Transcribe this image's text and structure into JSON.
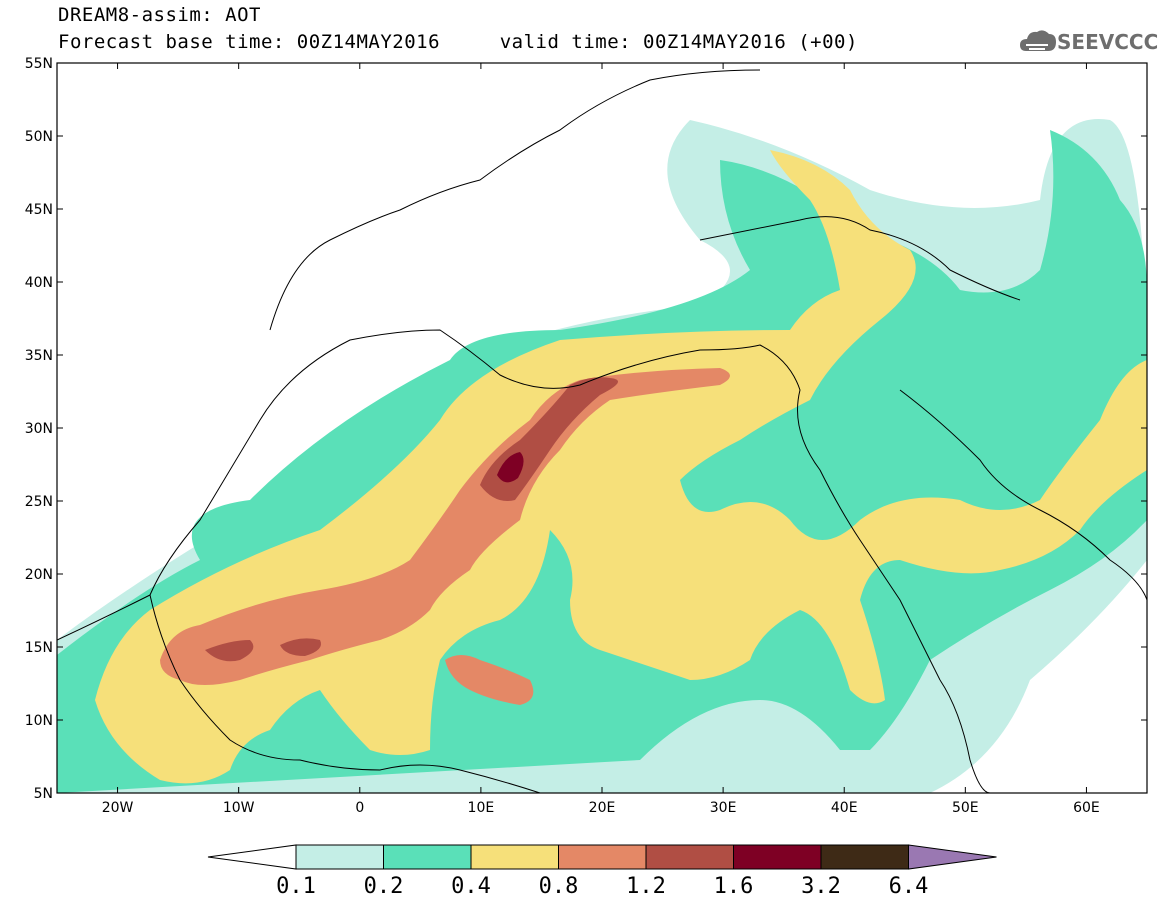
{
  "header": {
    "title_line1": "DREAM8-assim: AOT",
    "title_line2": "Forecast base time: 00Z14MAY2016     valid time: 00Z14MAY2016 (+00)"
  },
  "logo": {
    "text": "SEEVCCC",
    "icon": "cloud-icon"
  },
  "map": {
    "lon_range": [
      -25,
      65
    ],
    "lat_range": [
      5,
      55
    ],
    "lat_labels": [
      "5N",
      "10N",
      "15N",
      "20N",
      "25N",
      "30N",
      "35N",
      "40N",
      "45N",
      "50N",
      "55N"
    ],
    "lon_labels": [
      "20W",
      "10W",
      "0",
      "10E",
      "20E",
      "30E",
      "40E",
      "50E",
      "60E"
    ]
  },
  "colorbar": {
    "levels": [
      "0.1",
      "0.2",
      "0.4",
      "0.8",
      "1.2",
      "1.6",
      "3.2",
      "6.4"
    ],
    "colors": [
      "#ffffff",
      "#c4eee6",
      "#5ae0b8",
      "#f6e07a",
      "#e48866",
      "#b04e44",
      "#7e0024",
      "#3e2a16",
      "#9a78b2"
    ]
  }
}
